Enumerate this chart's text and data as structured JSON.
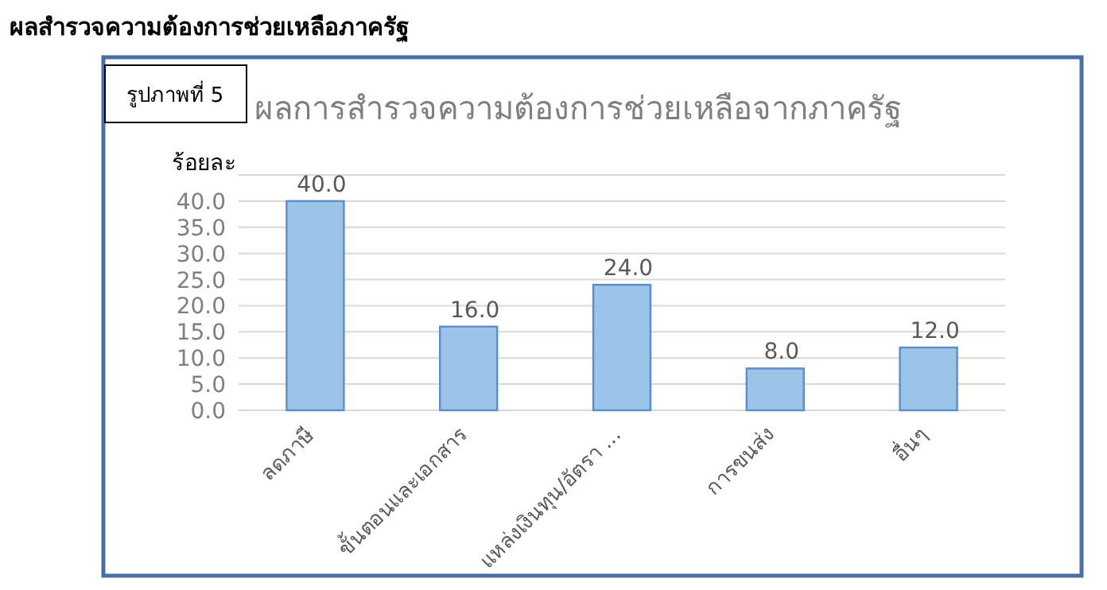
{
  "chart_data": {
    "type": "bar",
    "title": "ผลการสำรวจความต้องการช่วยเหลือจากภาครัฐ",
    "ylabel": "ร้อยละ",
    "annotations": [
      "ผลสำรวจความต้องการช่วยเหลือภาครัฐ",
      "รูปภาพที่ 5"
    ],
    "categories": [
      "ลดภาษี",
      "ขั้นตอนและเอกสาร",
      "แหล่งเงินทุน/อัตรา ...",
      "การขนส่ง",
      "อื่นๆ"
    ],
    "values": [
      40,
      16,
      24,
      8,
      12
    ],
    "value_labels": [
      "40.0",
      "16.0",
      "24.0",
      "8.0",
      "12.0"
    ],
    "color": "#9dc3e6",
    "ylim": [
      0,
      45
    ],
    "yticks": [
      {
        "value": 0,
        "label": "0.0"
      },
      {
        "value": 5,
        "label": "5.0"
      },
      {
        "value": 10,
        "label": "10.0"
      },
      {
        "value": 15,
        "label": "15.0"
      },
      {
        "value": 20,
        "label": "20.0"
      },
      {
        "value": 25,
        "label": "25.0"
      },
      {
        "value": 30,
        "label": "30.0"
      },
      {
        "value": 35,
        "label": "35.0"
      },
      {
        "value": 40,
        "label": "40.0"
      },
      {
        "value": 45,
        "label": null
      }
    ],
    "grid": "y"
  }
}
